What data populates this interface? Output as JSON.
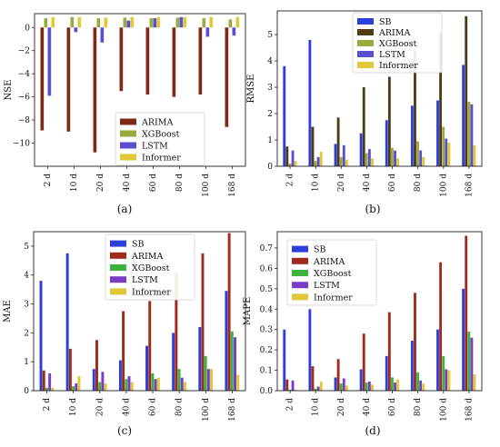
{
  "figure": {
    "panel_labels": [
      "(a)",
      "(b)",
      "(c)",
      "(d)"
    ]
  },
  "chart_data": [
    {
      "type": "bar",
      "panel": "(a)",
      "title": "",
      "xlabel": "",
      "ylabel": "NSE",
      "ylim": [
        -12,
        1.2
      ],
      "yticks": [
        0,
        -2,
        -4,
        -6,
        -8,
        -10
      ],
      "grid": false,
      "legend_position": "lower-right",
      "categories": [
        "2 d",
        "10 d",
        "20 d",
        "40 d",
        "60 d",
        "80 d",
        "100 d",
        "168 d"
      ],
      "series": [
        {
          "name": "ARIMA",
          "color": "#7f2a16",
          "values": [
            -8.9,
            -9.0,
            -10.8,
            -5.5,
            -5.8,
            -6.0,
            -5.8,
            -8.6
          ]
        },
        {
          "name": "XGBoost",
          "color": "#9aaa3c",
          "values": [
            0.8,
            0.9,
            0.8,
            0.85,
            0.8,
            0.85,
            0.8,
            0.7
          ]
        },
        {
          "name": "LSTM",
          "color": "#5a4fd0",
          "values": [
            -5.9,
            -0.4,
            -1.3,
            0.6,
            0.8,
            0.9,
            -0.8,
            -0.7
          ]
        },
        {
          "name": "Informer",
          "color": "#e0c838",
          "values": [
            0.9,
            0.9,
            0.85,
            0.9,
            0.9,
            0.9,
            0.9,
            0.9
          ]
        }
      ]
    },
    {
      "type": "bar",
      "panel": "(b)",
      "title": "",
      "xlabel": "",
      "ylabel": "RMSE",
      "ylim": [
        0,
        5.9
      ],
      "yticks": [
        0,
        1,
        2,
        3,
        4,
        5
      ],
      "grid": false,
      "legend_position": "top-left",
      "categories": [
        "2 d",
        "10 d",
        "20 d",
        "40 d",
        "60 d",
        "80 d",
        "100 d",
        "168 d"
      ],
      "series": [
        {
          "name": "SB",
          "color": "#2b3fdc",
          "values": [
            3.8,
            4.8,
            0.85,
            1.25,
            1.75,
            2.3,
            2.5,
            3.85
          ]
        },
        {
          "name": "ARIMA",
          "color": "#4f3b14",
          "values": [
            0.75,
            1.5,
            1.85,
            3.0,
            3.4,
            4.4,
            5.1,
            5.7
          ]
        },
        {
          "name": "XGBoost",
          "color": "#9aaa3c",
          "values": [
            0.1,
            0.2,
            0.35,
            0.5,
            0.7,
            0.95,
            1.5,
            2.45
          ]
        },
        {
          "name": "LSTM",
          "color": "#5a4fd0",
          "values": [
            0.6,
            0.35,
            0.8,
            0.65,
            0.6,
            0.6,
            1.05,
            2.35
          ]
        },
        {
          "name": "Informer",
          "color": "#e0c838",
          "values": [
            0.2,
            0.55,
            0.25,
            0.3,
            0.3,
            0.35,
            0.9,
            0.8
          ]
        }
      ]
    },
    {
      "type": "bar",
      "panel": "(c)",
      "title": "",
      "xlabel": "",
      "ylabel": "MAE",
      "ylim": [
        0,
        5.5
      ],
      "yticks": [
        0,
        1,
        2,
        3,
        4,
        5
      ],
      "grid": false,
      "legend_position": "top-left",
      "categories": [
        "2 d",
        "10 d",
        "20 d",
        "40 d",
        "60 d",
        "80 d",
        "100 d",
        "168 d"
      ],
      "series": [
        {
          "name": "SB",
          "color": "#2b3fdc",
          "values": [
            3.8,
            4.75,
            0.75,
            1.05,
            1.55,
            2.0,
            2.2,
            3.45
          ]
        },
        {
          "name": "ARIMA",
          "color": "#a02a1c",
          "values": [
            0.7,
            1.45,
            1.75,
            2.75,
            3.1,
            4.1,
            4.75,
            5.45
          ]
        },
        {
          "name": "XGBoost",
          "color": "#3cb43c",
          "values": [
            0.1,
            0.15,
            0.3,
            0.4,
            0.6,
            0.75,
            1.2,
            2.05
          ]
        },
        {
          "name": "LSTM",
          "color": "#7a3cc8",
          "values": [
            0.6,
            0.25,
            0.65,
            0.5,
            0.4,
            0.45,
            0.75,
            1.85
          ]
        },
        {
          "name": "Informer",
          "color": "#e0c838",
          "values": [
            0.1,
            0.5,
            0.25,
            0.3,
            0.45,
            0.3,
            0.75,
            0.55
          ]
        }
      ]
    },
    {
      "type": "bar",
      "panel": "(d)",
      "title": "",
      "xlabel": "",
      "ylabel": "MAPE",
      "ylim": [
        0,
        0.78
      ],
      "yticks": [
        0.0,
        0.1,
        0.2,
        0.3,
        0.4,
        0.5,
        0.6,
        0.7
      ],
      "grid": false,
      "legend_position": "top-left",
      "categories": [
        "2 d",
        "10 d",
        "20 d",
        "40 d",
        "60 d",
        "80 d",
        "100 d",
        "168 d"
      ],
      "series": [
        {
          "name": "SB",
          "color": "#2b3fdc",
          "values": [
            0.3,
            0.4,
            0.065,
            0.105,
            0.17,
            0.245,
            0.3,
            0.5
          ]
        },
        {
          "name": "ARIMA",
          "color": "#a02a1c",
          "values": [
            0.055,
            0.12,
            0.155,
            0.28,
            0.385,
            0.48,
            0.63,
            0.76
          ]
        },
        {
          "name": "XGBoost",
          "color": "#3cb43c",
          "values": [
            0.005,
            0.01,
            0.035,
            0.04,
            0.065,
            0.09,
            0.17,
            0.29
          ]
        },
        {
          "name": "LSTM",
          "color": "#7a3cc8",
          "values": [
            0.05,
            0.02,
            0.06,
            0.045,
            0.04,
            0.05,
            0.105,
            0.26
          ]
        },
        {
          "name": "Informer",
          "color": "#e0c838",
          "values": [
            0.005,
            0.045,
            0.025,
            0.03,
            0.055,
            0.035,
            0.1,
            0.08
          ]
        }
      ]
    }
  ]
}
